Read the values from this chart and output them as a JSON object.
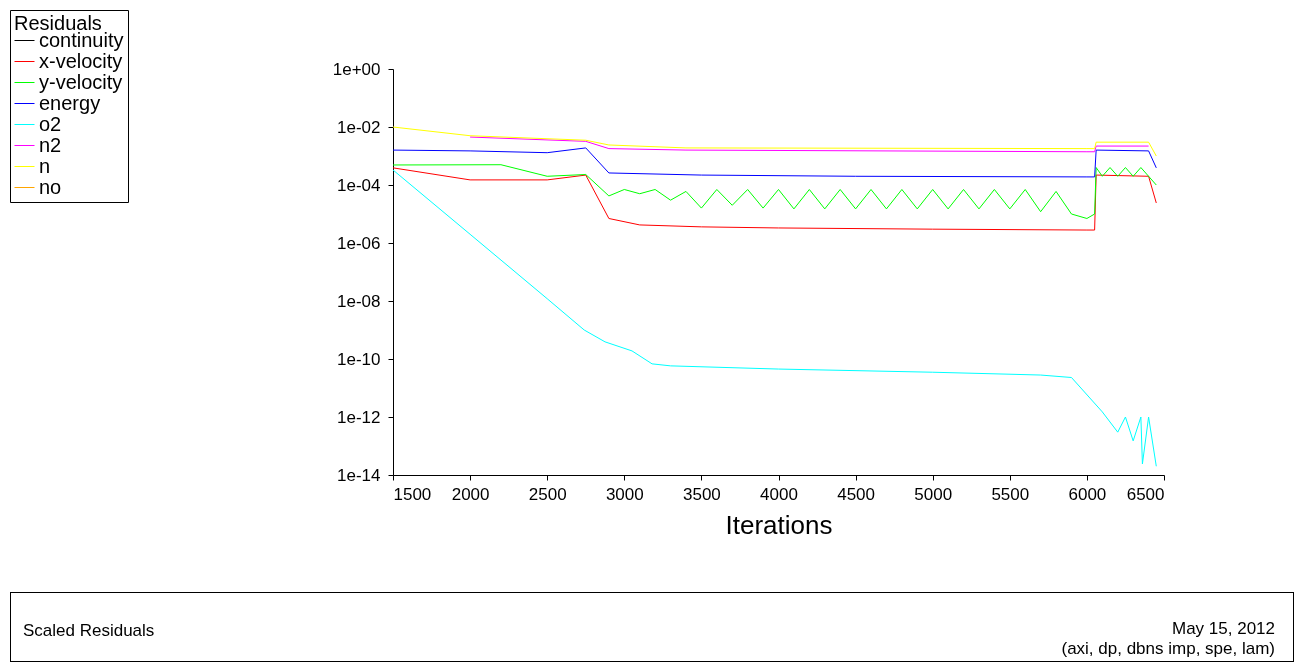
{
  "chart_data": {
    "type": "line",
    "xlabel": "Iterations",
    "legend_title": "Residuals",
    "legend": "top left",
    "log": "y",
    "grid": false,
    "xlim": [
      1500,
      6500
    ],
    "xticks": [
      1500,
      2000,
      2500,
      3000,
      3500,
      4000,
      4500,
      5000,
      5500,
      6000,
      6500
    ],
    "ylim": [
      1e-14,
      1
    ],
    "yticks": [
      {
        "value": 1,
        "label": "1e+00"
      },
      {
        "value": 0.01,
        "label": "1e-02"
      },
      {
        "value": 0.0001,
        "label": "1e-04"
      },
      {
        "value": 1e-06,
        "label": "1e-06"
      },
      {
        "value": 1e-08,
        "label": "1e-08"
      },
      {
        "value": 1e-10,
        "label": "1e-10"
      },
      {
        "value": 1e-12,
        "label": "1e-12"
      },
      {
        "value": 1e-14,
        "label": "1e-14"
      }
    ],
    "series": [
      {
        "name": "continuity",
        "color": "#000000"
      },
      {
        "name": "x-velocity",
        "color": "#ff0000",
        "x": [
          1500,
          2000,
          2500,
          2750,
          2900,
          3100,
          3500,
          4000,
          5000,
          6000,
          6050,
          6060,
          6400,
          6450
        ],
        "values": [
          0.00039,
          0.00015,
          0.00015,
          0.00022,
          7e-06,
          4.2e-06,
          3.6e-06,
          3.3e-06,
          3e-06,
          2.8e-06,
          2.8e-06,
          0.00022,
          0.0002,
          2.4e-05
        ]
      },
      {
        "name": "y-velocity",
        "color": "#00ff00",
        "x": [
          1500,
          2200,
          2500,
          2750,
          2900,
          3000,
          3100,
          3200,
          3300,
          3400,
          3500,
          3600,
          3700,
          3800,
          3900,
          4000,
          4100,
          4200,
          4300,
          4400,
          4500,
          4600,
          4700,
          4800,
          4900,
          5000,
          5100,
          5200,
          5300,
          5400,
          5500,
          5600,
          5700,
          5800,
          5900,
          6000,
          6050,
          6060,
          6100,
          6150,
          6200,
          6250,
          6300,
          6350,
          6400,
          6450
        ],
        "values": [
          0.00049,
          0.0005,
          0.0002,
          0.00023,
          4.2e-05,
          7e-05,
          5e-05,
          7e-05,
          3e-05,
          6e-05,
          1.6e-05,
          7e-05,
          2e-05,
          7e-05,
          1.6e-05,
          7e-05,
          1.5e-05,
          7e-05,
          1.5e-05,
          7e-05,
          1.5e-05,
          7e-05,
          1.5e-05,
          7e-05,
          1.5e-05,
          7e-05,
          1.5e-05,
          7e-05,
          1.5e-05,
          7e-05,
          1.5e-05,
          7e-05,
          1.2e-05,
          6e-05,
          1e-05,
          7e-06,
          1e-05,
          0.0004,
          0.0002,
          0.0004,
          0.0002,
          0.0004,
          0.0002,
          0.0004,
          0.0002,
          0.0001
        ]
      },
      {
        "name": "energy",
        "color": "#0000ff",
        "x": [
          1500,
          2000,
          2500,
          2750,
          2900,
          3500,
          4500,
          6000,
          6050,
          6060,
          6400,
          6450
        ],
        "values": [
          0.0016,
          0.0015,
          0.0013,
          0.0019,
          0.00026,
          0.00022,
          0.0002,
          0.00019,
          0.00019,
          0.0016,
          0.0015,
          0.00039
        ]
      },
      {
        "name": "o2",
        "color": "#00ffff",
        "x": [
          1500,
          2000,
          2500,
          2740,
          2875,
          3050,
          3180,
          3300,
          4000,
          5000,
          5700,
          5900,
          6100,
          6200,
          6250,
          6300,
          6350,
          6360,
          6400,
          6450
        ],
        "values": [
          0.00033,
          2e-06,
          1.2e-08,
          1e-09,
          3.9e-10,
          1.9e-10,
          6.8e-11,
          5.8e-11,
          4.5e-11,
          3.5e-11,
          2.8e-11,
          2.3e-11,
          1.5e-12,
          3e-13,
          1e-12,
          1.5e-13,
          1e-12,
          2.4e-14,
          1e-12,
          2e-14
        ]
      },
      {
        "name": "n2",
        "color": "#ff00ff",
        "x": [
          2000,
          2750,
          2900,
          3400,
          6000,
          6050,
          6060,
          6400
        ],
        "values": [
          0.0045,
          0.0032,
          0.0018,
          0.0016,
          0.0014,
          0.0014,
          0.0022,
          0.0022
        ]
      },
      {
        "name": "n",
        "color": "#ffff00",
        "x": [
          1500,
          2000,
          2750,
          2900,
          3400,
          6000,
          6050,
          6060,
          6400,
          6450
        ],
        "values": [
          0.01,
          0.005,
          0.0035,
          0.0024,
          0.0019,
          0.0018,
          0.0018,
          0.003,
          0.003,
          0.001
        ]
      },
      {
        "name": "no",
        "color": "#ffa500"
      }
    ],
    "annotations": [
      "Scaled Residuals",
      "May 15, 2012",
      "(axi, dp, dbns imp, spe, lam)"
    ]
  }
}
